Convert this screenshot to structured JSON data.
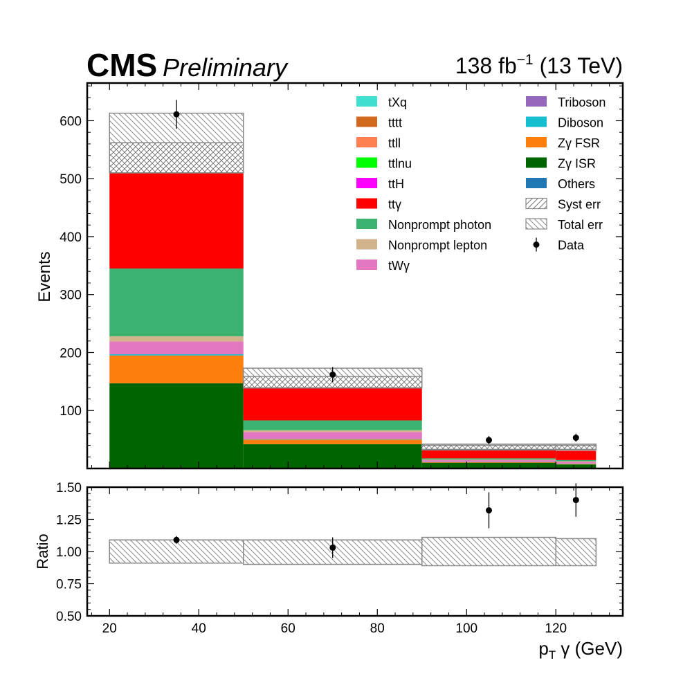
{
  "header": {
    "experiment": "CMS",
    "status": "Preliminary",
    "lumi_value": "138 fb",
    "lumi_exp": "−1",
    "energy": " (13 TeV)"
  },
  "chart_data": {
    "type": "bar",
    "stacked": true,
    "x_bin_edges": [
      20,
      50,
      90,
      120,
      129
    ],
    "xlabel_main": "p",
    "xlabel_sub": "T",
    "xlabel_rest": " γ (GeV)",
    "xlim": [
      15,
      135
    ],
    "x_ticks": [
      20,
      40,
      60,
      80,
      100,
      120
    ],
    "top_panel": {
      "ylabel": "Events",
      "ylim": [
        0,
        665
      ],
      "y_ticks": [
        100,
        200,
        300,
        400,
        500,
        600
      ],
      "series": [
        {
          "name": "Zγ ISR",
          "color": "#006400",
          "values": [
            147,
            42,
            10,
            7
          ]
        },
        {
          "name": "Zγ FSR",
          "color": "#ff7f0e",
          "values": [
            48,
            8,
            1,
            1
          ]
        },
        {
          "name": "Diboson",
          "color": "#17becf",
          "values": [
            2,
            1,
            0.5,
            0.5
          ]
        },
        {
          "name": "tWγ",
          "color": "#e377c2",
          "values": [
            22,
            12,
            3,
            3
          ]
        },
        {
          "name": "Nonprompt lepton",
          "color": "#d2b48c",
          "values": [
            9,
            3,
            1,
            1
          ]
        },
        {
          "name": "Nonprompt photon",
          "color": "#3cb371",
          "values": [
            117,
            17,
            2,
            2
          ]
        },
        {
          "name": "ttγ",
          "color": "#ff0000",
          "values": [
            166,
            57,
            16,
            16
          ]
        },
        {
          "name": "Others",
          "color": "#1f77b4",
          "values": [
            0,
            0,
            0,
            0
          ]
        },
        {
          "name": "Triboson",
          "color": "#9467bd",
          "values": [
            0,
            0,
            0,
            0
          ]
        },
        {
          "name": "tXq",
          "color": "#40e0d0",
          "values": [
            0,
            0,
            0,
            0
          ]
        },
        {
          "name": "tttt",
          "color": "#d2691e",
          "values": [
            0,
            0,
            0,
            0
          ]
        },
        {
          "name": "ttll",
          "color": "#ff7f50",
          "values": [
            0,
            0,
            0,
            0
          ]
        },
        {
          "name": "ttlnu",
          "color": "#00ff00",
          "values": [
            0,
            0,
            0,
            0
          ]
        },
        {
          "name": "ttH",
          "color": "#ff00ff",
          "values": [
            0,
            0,
            0,
            0
          ]
        }
      ],
      "syst_err_band": [
        [
          510,
          562
        ],
        [
          139,
          159
        ],
        [
          33,
          40
        ],
        [
          33,
          40
        ]
      ],
      "total_err_band": [
        [
          510,
          613
        ],
        [
          139,
          173
        ],
        [
          32,
          42
        ],
        [
          32,
          42
        ]
      ],
      "data": {
        "name": "Data",
        "x": [
          35,
          70,
          105,
          124.5
        ],
        "y": [
          611,
          162,
          49,
          53
        ],
        "yerr": [
          25,
          13,
          7,
          7
        ]
      }
    },
    "ratio_panel": {
      "ylabel": "Ratio",
      "ylim": [
        0.5,
        1.5
      ],
      "y_ticks": [
        "0.50",
        "0.75",
        "1.00",
        "1.25",
        "1.50"
      ],
      "y_tick_values": [
        0.5,
        0.75,
        1.0,
        1.25,
        1.5
      ],
      "err_band": [
        [
          0.91,
          1.09
        ],
        [
          0.9,
          1.09
        ],
        [
          0.89,
          1.11
        ],
        [
          0.89,
          1.1
        ]
      ],
      "data": {
        "x": [
          35,
          70,
          105,
          124.5
        ],
        "y": [
          1.09,
          1.03,
          1.32,
          1.4
        ],
        "yerr": [
          0.03,
          0.08,
          0.14,
          0.13
        ]
      }
    },
    "legend": {
      "placement": "top-right",
      "col1": [
        {
          "label": "tXq",
          "color": "#40e0d0"
        },
        {
          "label": "tttt",
          "color": "#d2691e"
        },
        {
          "label": "ttll",
          "color": "#ff7f50"
        },
        {
          "label": "ttlnu",
          "color": "#00ff00"
        },
        {
          "label": "ttH",
          "color": "#ff00ff"
        },
        {
          "label": "ttγ",
          "color": "#ff0000"
        },
        {
          "label": "Nonprompt photon",
          "color": "#3cb371"
        },
        {
          "label": "Nonprompt lepton",
          "color": "#d2b48c"
        },
        {
          "label": "tWγ",
          "color": "#e377c2"
        }
      ],
      "col2": [
        {
          "label": "Triboson",
          "color": "#9467bd"
        },
        {
          "label": "Diboson",
          "color": "#17becf"
        },
        {
          "label": "Zγ FSR",
          "color": "#ff7f0e"
        },
        {
          "label": "Zγ ISR",
          "color": "#006400"
        },
        {
          "label": "Others",
          "color": "#1f77b4"
        },
        {
          "label": "Syst err",
          "kind": "syst"
        },
        {
          "label": "Total err",
          "kind": "total"
        },
        {
          "label": "Data",
          "kind": "data"
        }
      ]
    }
  }
}
